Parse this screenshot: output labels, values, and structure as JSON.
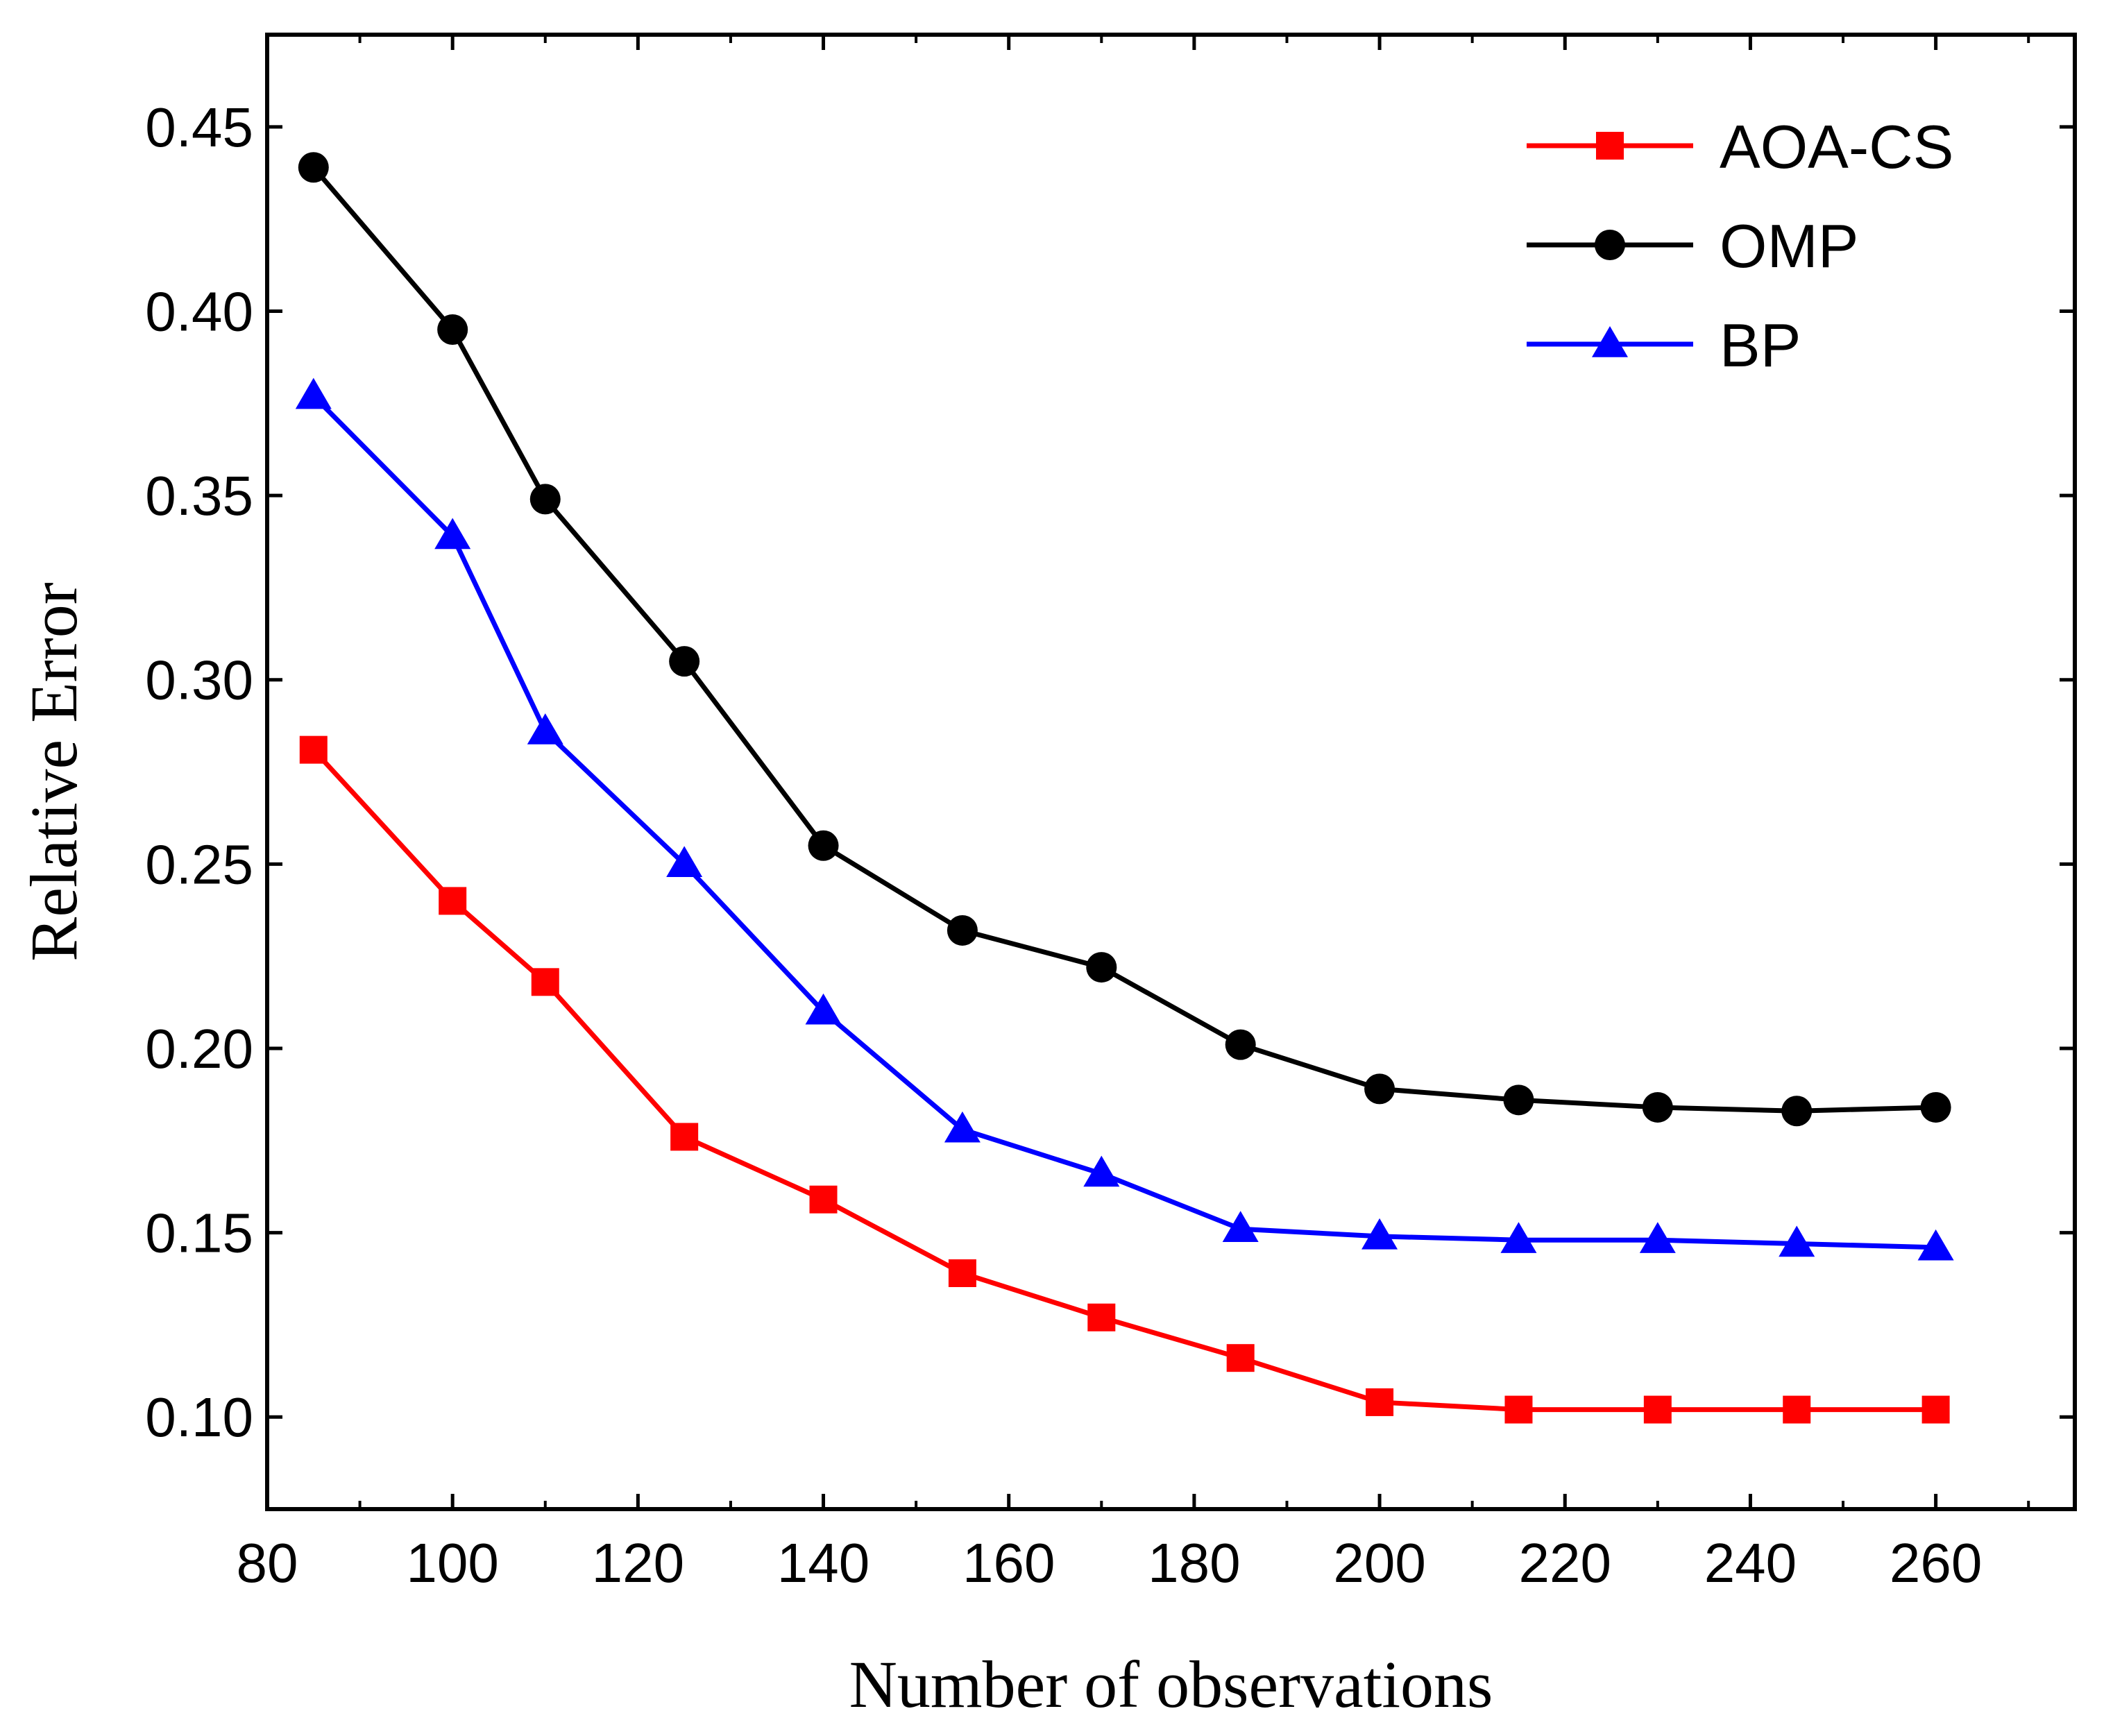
{
  "chart_data": {
    "type": "line",
    "title": "",
    "xlabel": "Number of observations",
    "ylabel": "Relative Error",
    "xlim": [
      80,
      275
    ],
    "ylim": [
      0.075,
      0.475
    ],
    "xticks": [
      80,
      100,
      120,
      140,
      160,
      180,
      200,
      220,
      240,
      260
    ],
    "xtick_labels": [
      "80",
      "100",
      "120",
      "140",
      "160",
      "180",
      "200",
      "220",
      "240",
      "260"
    ],
    "yticks": [
      0.1,
      0.15,
      0.2,
      0.25,
      0.3,
      0.35,
      0.4,
      0.45
    ],
    "ytick_labels": [
      "0.10",
      "0.15",
      "0.20",
      "0.25",
      "0.30",
      "0.35",
      "0.40",
      "0.45"
    ],
    "grid": false,
    "legend_position": "top-right",
    "x": [
      85,
      100,
      110,
      125,
      140,
      155,
      170,
      185,
      200,
      215,
      230,
      245,
      260
    ],
    "series": [
      {
        "name": "AOA-CS",
        "color": "#ff0000",
        "marker": "square",
        "values": [
          0.281,
          0.24,
          0.218,
          0.176,
          0.159,
          0.139,
          0.127,
          0.116,
          0.104,
          0.102,
          0.102,
          0.102,
          0.102
        ]
      },
      {
        "name": "OMP",
        "color": "#000000",
        "marker": "circle",
        "values": [
          0.439,
          0.395,
          0.349,
          0.305,
          0.255,
          0.232,
          0.222,
          0.201,
          0.189,
          0.186,
          0.184,
          0.183,
          0.184
        ]
      },
      {
        "name": "BP",
        "color": "#0000ff",
        "marker": "triangle",
        "values": [
          0.377,
          0.339,
          0.286,
          0.25,
          0.21,
          0.178,
          0.166,
          0.151,
          0.149,
          0.148,
          0.148,
          0.147,
          0.146
        ]
      }
    ]
  }
}
